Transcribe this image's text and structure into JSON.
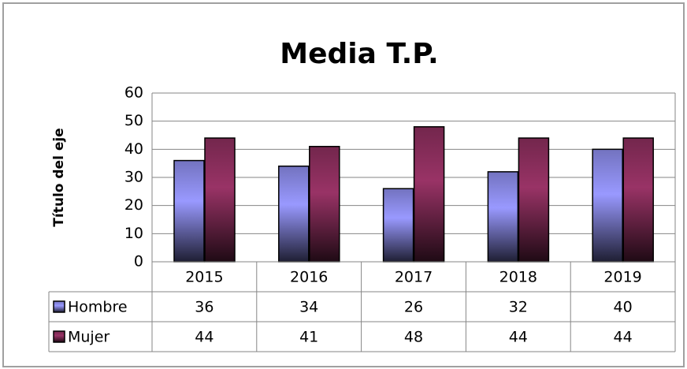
{
  "chart_data": {
    "type": "bar",
    "title": "Media T.P.",
    "y_axis_label": "Título del eje",
    "categories": [
      "2015",
      "2016",
      "2017",
      "2018",
      "2019"
    ],
    "series": [
      {
        "name": "Hombre",
        "color": "#9999ff",
        "values": [
          36,
          34,
          26,
          32,
          40
        ]
      },
      {
        "name": "Mujer",
        "color": "#993366",
        "values": [
          44,
          41,
          48,
          44,
          44
        ]
      }
    ],
    "ylim": [
      0,
      60
    ],
    "yticks": [
      0,
      10,
      20,
      30,
      40,
      50,
      60
    ],
    "grid": true,
    "data_table": true
  }
}
